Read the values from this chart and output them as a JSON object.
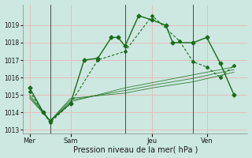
{
  "background_color": "#cce8e0",
  "plot_bg_color": "#cce8e0",
  "grid_color": "#e8b8b8",
  "line_color": "#1a6b1a",
  "xlabel": "Pression niveau de la mer( hPa )",
  "ylim": [
    1012.8,
    1020.2
  ],
  "yticks": [
    1013,
    1014,
    1015,
    1016,
    1017,
    1018,
    1019
  ],
  "day_labels": [
    "Mer",
    "Sam",
    "Jeu",
    "Ven"
  ],
  "day_positions": [
    0.5,
    3.5,
    9.5,
    13.5
  ],
  "vline_positions": [
    2.0,
    7.5,
    12.5
  ],
  "series1_main": {
    "x": [
      0.5,
      1.5,
      2.0,
      3.5,
      4.5,
      5.5,
      6.5,
      7.0,
      7.5,
      8.5,
      9.5,
      10.5,
      11.0,
      12.5,
      13.5,
      14.5,
      15.5
    ],
    "y": [
      1015.4,
      1014.0,
      1013.5,
      1014.5,
      1017.0,
      1017.1,
      1018.3,
      1018.3,
      1017.8,
      1019.55,
      1019.3,
      1019.0,
      1018.0,
      1018.0,
      1018.3,
      1016.8,
      1015.0
    ]
  },
  "series2_dashed": {
    "x": [
      0.5,
      1.5,
      2.0,
      3.5,
      5.5,
      7.5,
      9.5,
      11.5,
      12.5,
      13.5,
      14.5,
      15.5
    ],
    "y": [
      1015.2,
      1014.0,
      1013.4,
      1014.5,
      1017.0,
      1017.5,
      1019.55,
      1018.1,
      1016.9,
      1016.6,
      1016.0,
      1016.7
    ]
  },
  "series3_thin": {
    "x": [
      0.5,
      2.0,
      3.5,
      7.5,
      9.5,
      12.5,
      15.5
    ],
    "y": [
      1015.0,
      1013.5,
      1014.6,
      1015.4,
      1015.7,
      1016.15,
      1016.6
    ]
  },
  "series4_thin": {
    "x": [
      0.5,
      2.0,
      3.5,
      7.5,
      9.5,
      12.5,
      15.5
    ],
    "y": [
      1014.9,
      1013.5,
      1014.7,
      1015.25,
      1015.55,
      1015.95,
      1016.45
    ]
  },
  "series5_thin": {
    "x": [
      0.5,
      2.0,
      3.5,
      7.5,
      9.5,
      12.5,
      15.5
    ],
    "y": [
      1014.8,
      1013.5,
      1014.8,
      1015.1,
      1015.4,
      1015.75,
      1016.3
    ]
  },
  "xlim": [
    0.0,
    16.5
  ],
  "markersize": 2.5
}
